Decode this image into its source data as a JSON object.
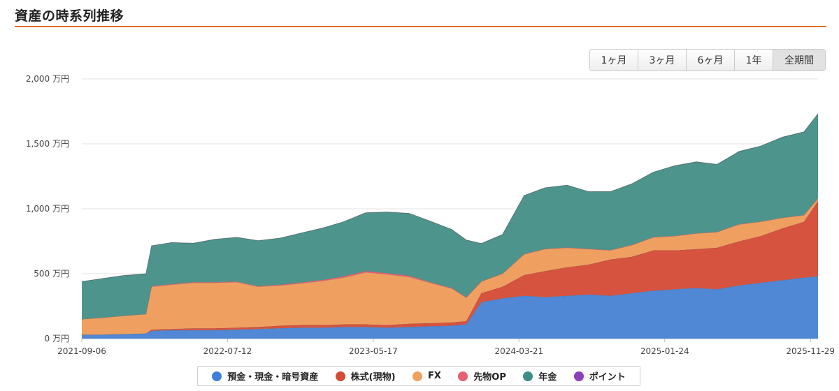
{
  "header": {
    "title": "資産の時系列推移"
  },
  "range_buttons": [
    {
      "label": "1ヶ月",
      "active": false
    },
    {
      "label": "3ヶ月",
      "active": false
    },
    {
      "label": "6ヶ月",
      "active": false
    },
    {
      "label": "1年",
      "active": false
    },
    {
      "label": "全期間",
      "active": true
    }
  ],
  "chart_data": {
    "type": "area",
    "stacked": true,
    "title": "",
    "xlabel": "",
    "ylabel": "",
    "y_unit": "万円",
    "ylim": [
      0,
      2000
    ],
    "yticks": [
      {
        "value": 0,
        "label": "0 万円"
      },
      {
        "value": 500,
        "label": "500 万円"
      },
      {
        "value": 1000,
        "label": "1,000 万円"
      },
      {
        "value": 1500,
        "label": "1,500 万円"
      },
      {
        "value": 2000,
        "label": "2,000 万円"
      }
    ],
    "x_start": "2021-09-06",
    "x_end": "2025-12-15",
    "xticks": [
      "2021-09-06",
      "2022-07-12",
      "2023-05-17",
      "2024-03-21",
      "2025-01-24",
      "2025-11-29"
    ],
    "grid": true,
    "legend_position": "bottom",
    "x": [
      "2021-09-06",
      "2021-10-15",
      "2021-12-01",
      "2022-01-20",
      "2022-02-01",
      "2022-03-15",
      "2022-05-01",
      "2022-06-15",
      "2022-08-01",
      "2022-09-15",
      "2022-11-01",
      "2022-12-15",
      "2023-01-31",
      "2023-03-15",
      "2023-05-01",
      "2023-06-15",
      "2023-08-01",
      "2023-09-15",
      "2023-10-31",
      "2023-11-30",
      "2024-01-01",
      "2024-02-15",
      "2024-04-01",
      "2024-05-15",
      "2024-07-01",
      "2024-08-15",
      "2024-10-01",
      "2024-11-15",
      "2024-12-31",
      "2025-02-15",
      "2025-04-01",
      "2025-05-15",
      "2025-07-01",
      "2025-08-15",
      "2025-10-01",
      "2025-11-15",
      "2025-12-15"
    ],
    "series": [
      {
        "name": "預金・現金・暗号資産",
        "color": "#5088d6",
        "values": [
          30,
          30,
          35,
          40,
          60,
          65,
          65,
          65,
          70,
          75,
          80,
          85,
          85,
          90,
          90,
          85,
          90,
          95,
          100,
          110,
          280,
          310,
          330,
          320,
          330,
          340,
          330,
          350,
          370,
          380,
          390,
          380,
          410,
          430,
          450,
          470,
          480
        ]
      },
      {
        "name": "株式(現物)",
        "color": "#d5533f",
        "values": [
          0,
          0,
          0,
          0,
          10,
          10,
          15,
          15,
          15,
          15,
          20,
          20,
          20,
          20,
          20,
          20,
          25,
          25,
          25,
          25,
          70,
          90,
          160,
          200,
          220,
          230,
          280,
          280,
          310,
          300,
          300,
          320,
          340,
          360,
          400,
          430,
          580
        ]
      },
      {
        "name": "FX",
        "color": "#efa061",
        "values": [
          120,
          130,
          140,
          150,
          330,
          340,
          350,
          350,
          350,
          310,
          310,
          320,
          340,
          360,
          400,
          390,
          360,
          310,
          260,
          180,
          90,
          100,
          160,
          170,
          150,
          120,
          70,
          90,
          100,
          110,
          120,
          120,
          130,
          110,
          80,
          50,
          20
        ]
      },
      {
        "name": "先物OP",
        "color": "#e8606f",
        "values": [
          0,
          0,
          0,
          0,
          5,
          5,
          5,
          5,
          5,
          5,
          5,
          8,
          8,
          10,
          10,
          10,
          10,
          5,
          5,
          5,
          2,
          2,
          2,
          2,
          2,
          2,
          2,
          2,
          2,
          2,
          2,
          2,
          2,
          2,
          2,
          2,
          2
        ]
      },
      {
        "name": "年金",
        "color": "#4d948d",
        "values": [
          290,
          300,
          310,
          310,
          310,
          320,
          300,
          330,
          340,
          350,
          360,
          380,
          400,
          420,
          450,
          470,
          480,
          470,
          450,
          440,
          290,
          300,
          450,
          470,
          480,
          440,
          450,
          470,
          500,
          540,
          550,
          520,
          560,
          580,
          620,
          640,
          650
        ]
      },
      {
        "name": "ポイント",
        "color": "#8b3fb8",
        "values": [
          0,
          0,
          0,
          0,
          0,
          0,
          0,
          0,
          0,
          0,
          0,
          0,
          0,
          0,
          0,
          0,
          0,
          0,
          0,
          0,
          0,
          0,
          0,
          0,
          0,
          0,
          0,
          0,
          0,
          0,
          0,
          0,
          0,
          0,
          0,
          0,
          0
        ]
      }
    ]
  }
}
